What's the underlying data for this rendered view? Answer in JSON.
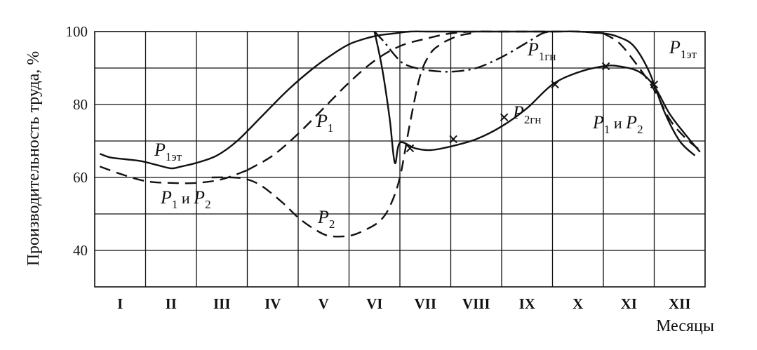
{
  "chart_data": {
    "type": "line",
    "title": "",
    "xlabel": "Месяцы",
    "ylabel": "Производительность труда, %",
    "ylim": [
      30,
      100
    ],
    "yticks": [
      40,
      60,
      80,
      100
    ],
    "xlim": [
      0,
      12
    ],
    "categories": [
      "I",
      "II",
      "III",
      "IV",
      "V",
      "VI",
      "VII",
      "VIII",
      "IX",
      "X",
      "XI",
      "XII"
    ],
    "grid": true,
    "series": [
      {
        "name": "P1эт",
        "style": "solid",
        "x": [
          0.1,
          0.3,
          0.6,
          0.9,
          1.2,
          1.5,
          1.7,
          2.0,
          2.4,
          2.8,
          3.3,
          3.8,
          4.3,
          4.7,
          5.0,
          5.3,
          5.6,
          5.9,
          6.2,
          6.6,
          7.0,
          7.5,
          8.0,
          8.5,
          9.0,
          9.5,
          10.0,
          10.3,
          10.6,
          10.9,
          11.2,
          11.5,
          11.8
        ],
        "y": [
          66.5,
          65.5,
          65,
          64.5,
          63.5,
          62.5,
          63,
          64,
          66,
          70,
          77,
          84,
          90,
          94,
          96.5,
          98,
          99,
          99.5,
          100,
          100,
          100,
          100,
          100,
          100,
          100,
          100,
          99.5,
          98.5,
          96,
          89,
          78,
          70,
          66
        ]
      },
      {
        "name": "P1",
        "style": "dashed",
        "x": [
          3.0,
          3.5,
          4.0,
          4.5,
          5.0,
          5.5,
          6.0,
          6.5,
          7.0,
          7.5,
          8.0,
          9.0,
          9.5,
          10.0
        ],
        "y": [
          62,
          66,
          72,
          79,
          86,
          92,
          96,
          98,
          99.5,
          100,
          100,
          100,
          100,
          99.5
        ]
      },
      {
        "name": "P1 и P2",
        "style": "dashed",
        "x": [
          0.1,
          0.5,
          1.0,
          1.5,
          2.0,
          2.5,
          3.0,
          10.0,
          10.3,
          10.6,
          11.0,
          11.3,
          11.6,
          11.9
        ],
        "y": [
          63,
          61,
          59,
          58.5,
          58.5,
          59.5,
          62,
          99.5,
          97,
          92,
          84,
          76,
          71,
          67.5
        ]
      },
      {
        "name": "P2",
        "style": "dashed",
        "x": [
          2.3,
          2.7,
          3.0,
          3.3,
          3.7,
          4.0,
          4.3,
          4.6,
          5.0,
          5.3,
          5.6,
          5.8,
          6.0,
          6.2,
          6.4,
          6.6,
          6.8,
          7.0,
          7.2,
          7.4
        ],
        "y": [
          60,
          60,
          59.5,
          57.5,
          53,
          49,
          46,
          44,
          44,
          45.5,
          48,
          52,
          60,
          75,
          88,
          94,
          96.5,
          98,
          99,
          99.5
        ]
      },
      {
        "name": "P1гн",
        "style": "dash-dot",
        "x": [
          5.5,
          5.7,
          5.9,
          6.1,
          6.5,
          7.0,
          7.5,
          8.0,
          8.5,
          8.8,
          9.0
        ],
        "y": [
          100,
          97,
          93.5,
          91,
          89.5,
          89,
          90,
          93,
          97,
          99.5,
          100
        ]
      },
      {
        "name": "P2гн",
        "style": "solid-x",
        "x": [
          5.5,
          5.65,
          5.8,
          5.9,
          6.0,
          6.3,
          6.6,
          7.0,
          7.5,
          8.0,
          8.5,
          9.0,
          9.5,
          10.0,
          10.3,
          10.7,
          11.0,
          11.3,
          11.6,
          11.9
        ],
        "y": [
          100,
          90,
          76,
          64,
          69.5,
          68,
          67.5,
          68.5,
          70.5,
          74,
          79,
          85.5,
          88.8,
          90.5,
          90.5,
          89,
          85,
          77.5,
          72,
          67
        ],
        "markers_x": [
          6.2,
          7.05,
          8.05,
          9.05,
          10.05,
          11.0
        ],
        "markers_y": [
          68,
          70.5,
          76.5,
          85.5,
          90.5,
          85.5
        ]
      }
    ]
  },
  "labels": {
    "p1et_left": {
      "main": "P",
      "sub": "1эт"
    },
    "p1p2_left": {
      "a": "P",
      "a_sub": "1",
      "conj": " и ",
      "b": "P",
      "b_sub": "2"
    },
    "p1_mid": {
      "main": "P",
      "sub": "1"
    },
    "p2_mid": {
      "main": "P",
      "sub": "2"
    },
    "p1gn": {
      "main": "P",
      "sub": "1гн"
    },
    "p2gn": {
      "main": "P",
      "sub": "2гн"
    },
    "p1p2_right": {
      "a": "P",
      "a_sub": "1",
      "conj": " и ",
      "b": "P",
      "b_sub": "2"
    },
    "p1et_right": {
      "main": "P",
      "sub": "1эт"
    }
  }
}
